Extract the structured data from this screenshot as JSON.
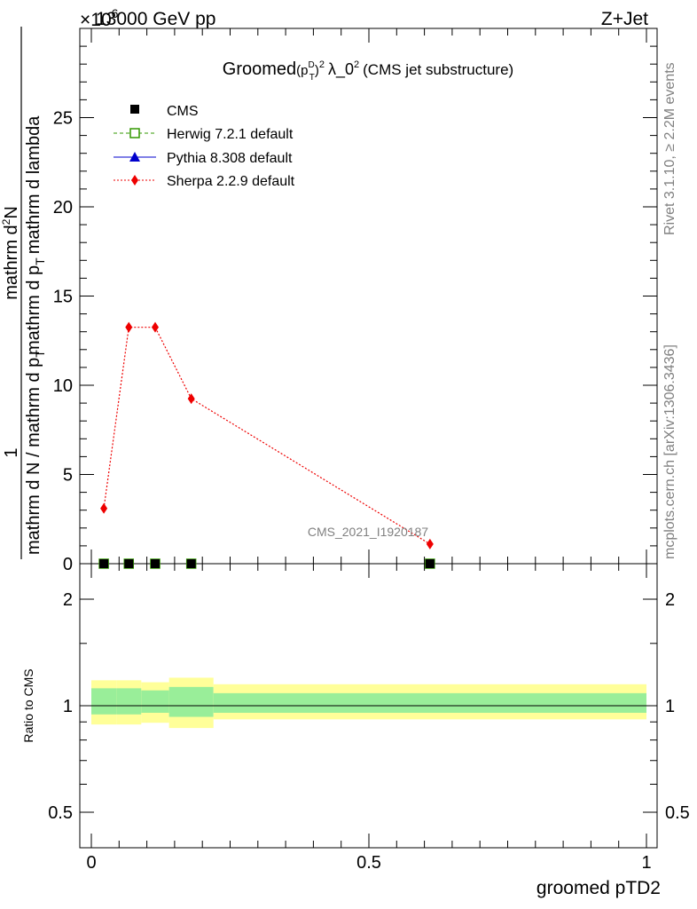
{
  "header": {
    "left": "13000 GeV pp",
    "right": "Z+Jet",
    "scale_prefix": "×10",
    "scale_exp": "6"
  },
  "side": {
    "rivet": "Rivet 3.1.10, ≥ 2.2M events",
    "mcplots": "mcplots.cern.ch [arXiv:1306.3436]"
  },
  "watermark": "CMS_2021_I1920187",
  "colors": {
    "herwig": "#339900",
    "pythia": "#0000cc",
    "sherpa": "#ee0000",
    "band_outer": "#ffff99",
    "band_inner": "#99ee99"
  },
  "chart_data": [
    {
      "type": "line",
      "title_main": "Groomed",
      "title_rest": "λ_0",
      "title_sup": "2",
      "title_paren": "(CMS jet substructure)",
      "title_pt_base": "(p",
      "title_pt_sup": "D",
      "title_pt_sub": "T",
      "title_pt_close": ")",
      "title_pt_close_sup": "2",
      "ylabel_num": "1",
      "ylabel_den": "mathrm d N / mathrm d p",
      "ylabel_den_sub": "T",
      "ylabel_num2": "mathrm d",
      "ylabel_num2_sup": "2",
      "ylabel_num2_rest": "N",
      "ylabel_den2": "mathrm d p",
      "ylabel_den2_sub": "T",
      "ylabel_den2_rest": "mathrm d lambda",
      "xlim": [
        0,
        1
      ],
      "ylim": [
        0,
        30000000
      ],
      "yticks": [
        0,
        5000000,
        10000000,
        15000000,
        20000000,
        25000000
      ],
      "ytick_labels": [
        "0",
        "5",
        "10",
        "15",
        "20",
        "25"
      ],
      "legend": [
        {
          "key": "cms",
          "label": "CMS"
        },
        {
          "key": "herwig",
          "label": "Herwig 7.2.1 default"
        },
        {
          "key": "pythia",
          "label": "Pythia 8.308 default"
        },
        {
          "key": "sherpa",
          "label": "Sherpa 2.2.9 default"
        }
      ],
      "bin_edges": [
        0,
        0.045,
        0.09,
        0.14,
        0.22,
        1.0
      ],
      "cms": {
        "x": [
          0.0225,
          0.0675,
          0.115,
          0.18,
          0.61
        ],
        "y": [
          0,
          0,
          0,
          0,
          0
        ]
      },
      "herwig": {
        "x": [
          0.0225,
          0.0675,
          0.115,
          0.18,
          0.61
        ],
        "y": [
          0,
          0,
          0,
          0,
          0
        ]
      },
      "pythia": {
        "x": [
          0.0225,
          0.0675,
          0.115,
          0.18,
          0.61
        ],
        "y": [
          0,
          0,
          0,
          0,
          0
        ]
      },
      "sherpa": {
        "x": [
          0.0225,
          0.0675,
          0.115,
          0.18,
          0.61
        ],
        "y": [
          3100000,
          13250000,
          13250000,
          9250000,
          1100000
        ]
      }
    },
    {
      "type": "area",
      "ylabel": "Ratio to CMS",
      "xlabel": "groomed pTD2",
      "xlim": [
        0,
        1
      ],
      "yticks": [
        0.5,
        1,
        2
      ],
      "ytick_labels": [
        "0.5",
        "1",
        "2"
      ],
      "xticks": [
        0,
        0.5,
        1
      ],
      "xtick_labels": [
        "0",
        "0.5",
        "1"
      ],
      "bin_edges": [
        0,
        0.045,
        0.09,
        0.14,
        0.22,
        1.0
      ],
      "outer_lo": [
        0.885,
        0.885,
        0.895,
        0.865,
        0.915
      ],
      "outer_hi": [
        1.18,
        1.18,
        1.165,
        1.2,
        1.15
      ],
      "inner_lo": [
        0.945,
        0.945,
        0.955,
        0.93,
        0.955
      ],
      "inner_hi": [
        1.12,
        1.12,
        1.105,
        1.13,
        1.085
      ]
    }
  ]
}
